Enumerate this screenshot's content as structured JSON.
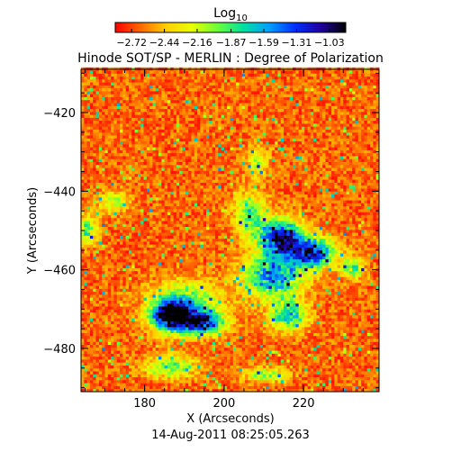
{
  "chart_data": {
    "type": "heatmap",
    "title": "Hinode SOT/SP - MERLIN : Degree of Polarization",
    "xlabel": "X (Arcseconds)",
    "ylabel": "Y (Arcseconds)",
    "footer": "14-Aug-2011 08:25:05.263",
    "colorbar": {
      "label_main": "Log",
      "label_sub": "10",
      "ticks": [
        -2.72,
        -2.44,
        -2.16,
        -1.87,
        -1.59,
        -1.31,
        -1.03
      ],
      "tick_labels": [
        "−2.72",
        "−2.44",
        "−2.16",
        "−1.87",
        "−1.59",
        "−1.31",
        "−1.03"
      ],
      "range": [
        -2.86,
        -0.89
      ],
      "colors": [
        "#ff0000",
        "#ff6a00",
        "#ffd000",
        "#e8ff00",
        "#6aff3a",
        "#00e0a0",
        "#00a0ff",
        "#0030ff",
        "#2000a0",
        "#000000"
      ]
    },
    "xlim": [
      164,
      239
    ],
    "ylim": [
      -491,
      -409
    ],
    "xticks": [
      180,
      200,
      220
    ],
    "xtick_labels": [
      "180",
      "200",
      "220"
    ],
    "yticks": [
      -480,
      -460,
      -440,
      -420
    ],
    "ytick_labels": [
      "−480",
      "−460",
      "−440",
      "−420"
    ],
    "background_level": -2.65,
    "features": [
      {
        "x": 214,
        "y": -452,
        "rx": 6,
        "ry": 5,
        "peak": -1.05
      },
      {
        "x": 222,
        "y": -456,
        "rx": 6,
        "ry": 4,
        "peak": -1.25
      },
      {
        "x": 212,
        "y": -462,
        "rx": 8,
        "ry": 6,
        "peak": -1.5
      },
      {
        "x": 216,
        "y": -472,
        "rx": 5,
        "ry": 4,
        "peak": -1.7
      },
      {
        "x": 186,
        "y": -472,
        "rx": 5,
        "ry": 4,
        "peak": -1.0
      },
      {
        "x": 194,
        "y": -474,
        "rx": 6,
        "ry": 3,
        "peak": -1.3
      },
      {
        "x": 190,
        "y": -469,
        "rx": 9,
        "ry": 6,
        "peak": -1.8
      },
      {
        "x": 186,
        "y": -485,
        "rx": 7,
        "ry": 3,
        "peak": -1.9
      },
      {
        "x": 206,
        "y": -446,
        "rx": 4,
        "ry": 6,
        "peak": -1.9
      },
      {
        "x": 208,
        "y": -433,
        "rx": 3,
        "ry": 4,
        "peak": -2.1
      },
      {
        "x": 165,
        "y": -450,
        "rx": 3,
        "ry": 4,
        "peak": -1.9
      },
      {
        "x": 172,
        "y": -443,
        "rx": 4,
        "ry": 3,
        "peak": -2.1
      },
      {
        "x": 210,
        "y": -487,
        "rx": 6,
        "ry": 2,
        "peak": -2.0
      },
      {
        "x": 232,
        "y": -460,
        "rx": 3,
        "ry": 3,
        "peak": -1.9
      }
    ]
  }
}
